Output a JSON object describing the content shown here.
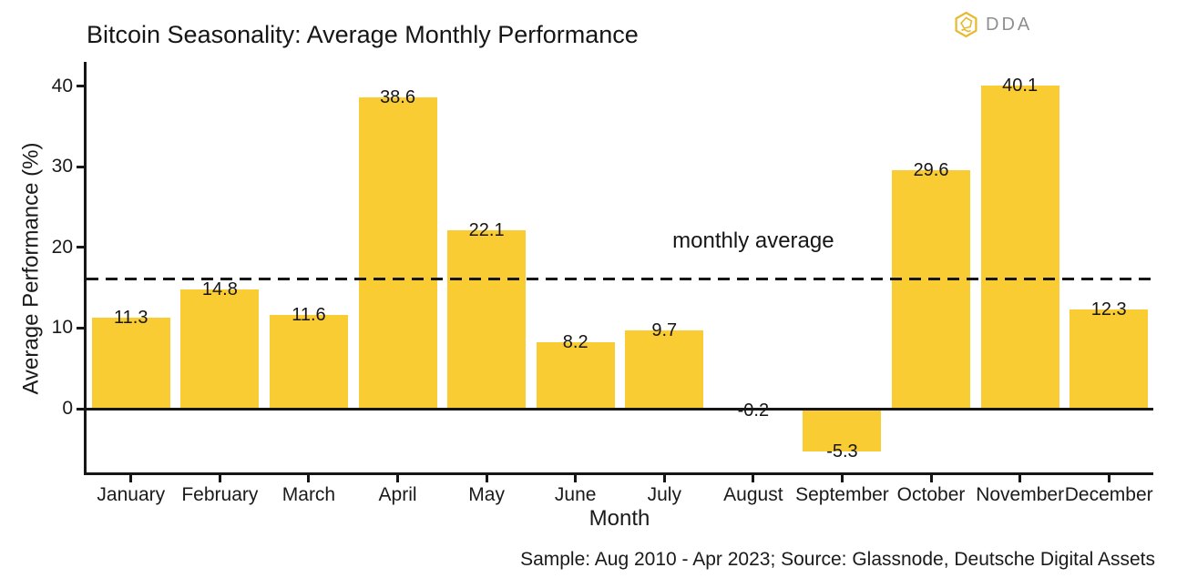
{
  "logo": {
    "icon": "dda-hexagon-icon",
    "text": "DDA",
    "icon_color": "#E8B92E",
    "text_color": "#8F8F8F"
  },
  "caption": "Sample: Aug 2010 - Apr 2023; Source: Glassnode, Deutsche Digital Assets",
  "chart_data": {
    "type": "bar",
    "title": "Bitcoin Seasonality: Average Monthly Performance",
    "xlabel": "Month",
    "ylabel": "Average Performance (%)",
    "categories": [
      "January",
      "February",
      "March",
      "April",
      "May",
      "June",
      "July",
      "August",
      "September",
      "October",
      "November",
      "December"
    ],
    "values": [
      11.3,
      14.8,
      11.6,
      38.6,
      22.1,
      8.2,
      9.7,
      -0.2,
      -5.3,
      29.6,
      40.1,
      12.3
    ],
    "yticks": [
      0,
      10,
      20,
      30,
      40
    ],
    "ylim": [
      -7.9,
      43
    ],
    "grid": false,
    "legend": "none",
    "bar_color": "#F9CC33",
    "text_color": "#161616",
    "reference_line": {
      "value": 16.1,
      "label": "monthly average",
      "style": "dashed"
    },
    "annotation_anchor_month": "August"
  }
}
